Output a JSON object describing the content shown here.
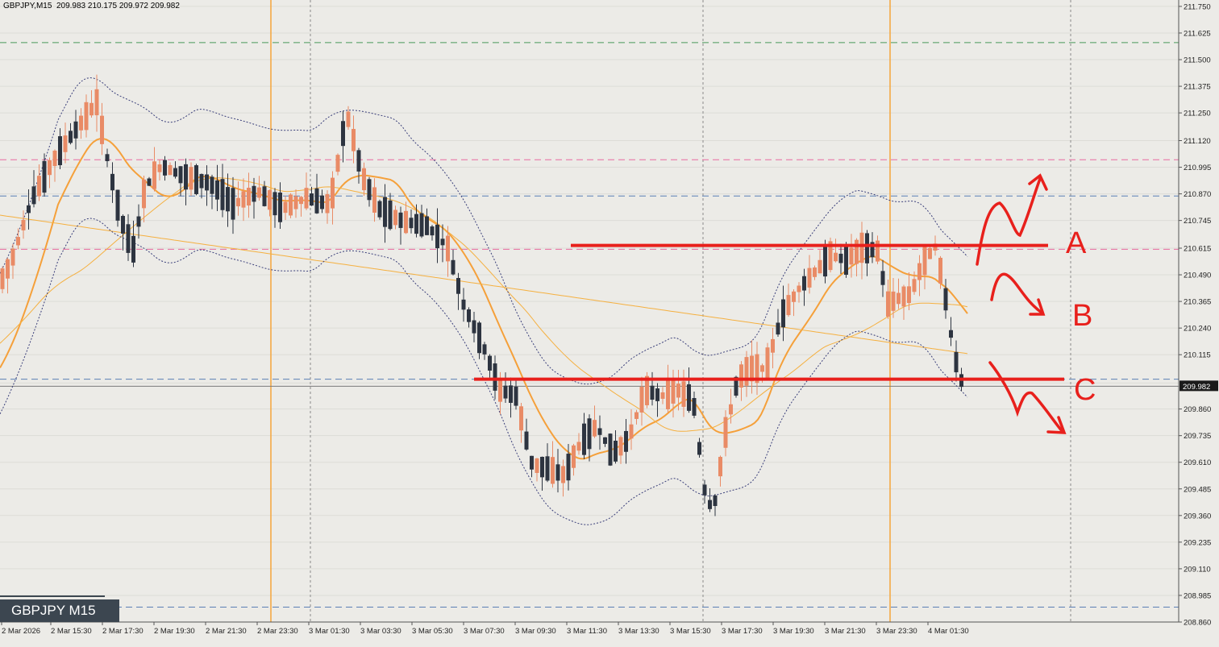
{
  "header": {
    "symbol": "GBPJPY,M15",
    "ohlc": "209.983 210.175 209.972 209.982"
  },
  "symbol_label": "GBPJPY M15",
  "colors": {
    "background": "#ecebe7",
    "bull_candle": "#e98b66",
    "bear_candle": "#2d3440",
    "ma_fast": "#f5a03a",
    "ma_slow": "#f5b040",
    "bollinger": "#3a3f7a",
    "annotation": "#e8201c",
    "session_line": "#f5a53a",
    "level_pink": "#e86aa0",
    "level_blue": "#5a7fb5",
    "level_green": "#4a9a5a"
  },
  "chart_data": {
    "type": "candlestick",
    "symbol": "GBPJPY",
    "timeframe": "M15",
    "ylim": [
      208.86,
      211.78
    ],
    "price_ticks": [
      "211.750",
      "211.625",
      "211.500",
      "211.375",
      "211.250",
      "211.120",
      "210.995",
      "210.870",
      "210.745",
      "210.615",
      "210.490",
      "210.365",
      "210.240",
      "210.115",
      "209.982",
      "209.860",
      "209.735",
      "209.610",
      "209.485",
      "209.360",
      "209.235",
      "209.110",
      "208.985",
      "208.860"
    ],
    "current_price": "209.982",
    "time_labels": [
      "2 Mar 2026",
      "2 Mar 15:30",
      "2 Mar 17:30",
      "2 Mar 19:30",
      "2 Mar 21:30",
      "2 Mar 23:30",
      "3 Mar 01:30",
      "3 Mar 03:30",
      "3 Mar 05:30",
      "3 Mar 07:30",
      "3 Mar 09:30",
      "3 Mar 11:30",
      "3 Mar 13:30",
      "3 Mar 15:30",
      "3 Mar 17:30",
      "3 Mar 19:30",
      "3 Mar 21:30",
      "3 Mar 23:30",
      "4 Mar 01:30"
    ],
    "levels": {
      "resistance_A": 210.628,
      "support_C": 210.0,
      "pink_upper": 211.03,
      "pink_lower": 210.61,
      "blue_upper": 210.86,
      "blue_lower": 210.0,
      "blue_bottom": 208.93,
      "green_top": 211.58
    },
    "scenario_labels": [
      "A",
      "B",
      "C"
    ],
    "candles_sampled": [
      {
        "t": "2 Mar 2026",
        "o": 210.5,
        "h": 210.6,
        "l": 210.4,
        "c": 210.58
      },
      {
        "t": "2 Mar 15:30",
        "o": 210.95,
        "h": 211.3,
        "l": 210.9,
        "c": 211.2
      },
      {
        "t": "2 Mar 17:30",
        "o": 210.7,
        "h": 210.95,
        "l": 210.55,
        "c": 210.85
      },
      {
        "t": "2 Mar 19:30",
        "o": 210.95,
        "h": 211.05,
        "l": 210.9,
        "c": 211.0
      },
      {
        "t": "2 Mar 21:30",
        "o": 210.85,
        "h": 210.98,
        "l": 210.8,
        "c": 210.9
      },
      {
        "t": "2 Mar 23:30",
        "o": 210.9,
        "h": 210.98,
        "l": 210.82,
        "c": 210.86
      },
      {
        "t": "3 Mar 01:30",
        "o": 210.9,
        "h": 211.32,
        "l": 210.85,
        "c": 211.25
      },
      {
        "t": "3 Mar 03:30",
        "o": 210.8,
        "h": 210.88,
        "l": 210.7,
        "c": 210.74
      },
      {
        "t": "3 Mar 05:30",
        "o": 210.66,
        "h": 210.7,
        "l": 210.48,
        "c": 210.52
      },
      {
        "t": "3 Mar 07:30",
        "o": 210.1,
        "h": 210.15,
        "l": 209.9,
        "c": 209.95
      },
      {
        "t": "3 Mar 09:30",
        "o": 209.62,
        "h": 209.72,
        "l": 209.5,
        "c": 209.58
      },
      {
        "t": "3 Mar 11:30",
        "o": 209.7,
        "h": 209.85,
        "l": 209.6,
        "c": 209.8
      },
      {
        "t": "3 Mar 13:30",
        "o": 209.85,
        "h": 210.1,
        "l": 209.78,
        "c": 210.02
      },
      {
        "t": "3 Mar 15:30",
        "o": 209.4,
        "h": 209.5,
        "l": 209.22,
        "c": 209.3
      },
      {
        "t": "3 Mar 17:30",
        "o": 210.0,
        "h": 210.15,
        "l": 209.95,
        "c": 210.1
      },
      {
        "t": "3 Mar 19:30",
        "o": 210.4,
        "h": 210.5,
        "l": 210.35,
        "c": 210.45
      },
      {
        "t": "3 Mar 21:30",
        "o": 210.55,
        "h": 210.68,
        "l": 210.5,
        "c": 210.62
      },
      {
        "t": "3 Mar 23:30",
        "o": 210.3,
        "h": 210.45,
        "l": 210.22,
        "c": 210.38
      },
      {
        "t": "4 Mar 01:30",
        "o": 210.1,
        "h": 210.2,
        "l": 209.95,
        "c": 209.98
      }
    ]
  }
}
